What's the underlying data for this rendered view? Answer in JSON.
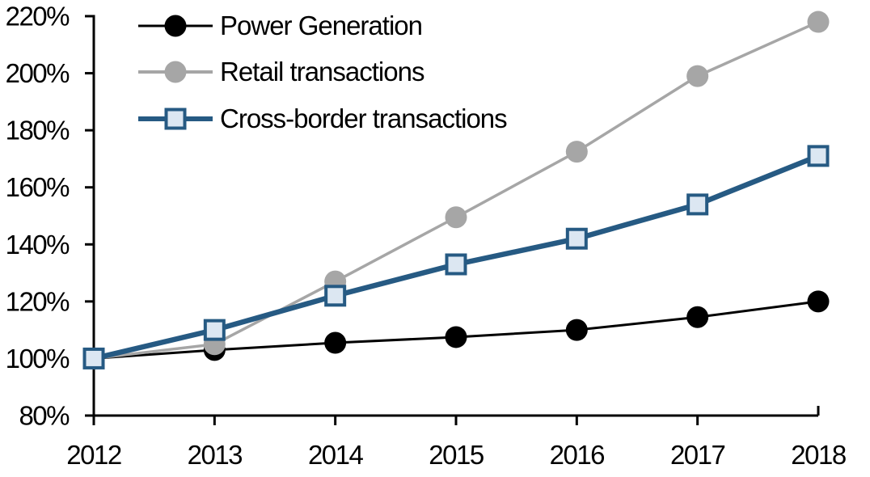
{
  "chart_data": {
    "type": "line",
    "title": "",
    "xlabel": "",
    "ylabel": "",
    "grid": false,
    "background_color": "#ffffff",
    "axis_color": "#000000",
    "legend_position": "top-left",
    "categories": [
      "2012",
      "2013",
      "2014",
      "2015",
      "2016",
      "2017",
      "2018"
    ],
    "x_axis": {
      "tick_labels": [
        "2012",
        "2013",
        "2014",
        "2015",
        "2016",
        "2017",
        "2018"
      ]
    },
    "y_axis": {
      "min": 80,
      "max": 220,
      "step": 20,
      "unit": "%",
      "tick_labels": [
        "80%",
        "100%",
        "120%",
        "140%",
        "160%",
        "180%",
        "200%",
        "220%"
      ]
    },
    "series": [
      {
        "name": "Power Generation",
        "marker": "circle",
        "color": "#000000",
        "marker_fill": "#000000",
        "marker_border": "#000000",
        "line_width": 3,
        "values": [
          100,
          103,
          105.5,
          107.5,
          110,
          114.5,
          120
        ]
      },
      {
        "name": "Retail transactions",
        "marker": "circle",
        "color": "#a6a6a6",
        "marker_fill": "#a6a6a6",
        "marker_border": "#a6a6a6",
        "line_width": 3.5,
        "values": [
          100,
          105,
          127,
          149.5,
          172.5,
          199,
          218
        ]
      },
      {
        "name": "Cross-border transactions",
        "marker": "square",
        "color": "#265a83",
        "marker_fill": "#dce7f2",
        "marker_border": "#265a83",
        "line_width": 6.5,
        "values": [
          100,
          110,
          122,
          133,
          142,
          154,
          171
        ]
      }
    ]
  }
}
